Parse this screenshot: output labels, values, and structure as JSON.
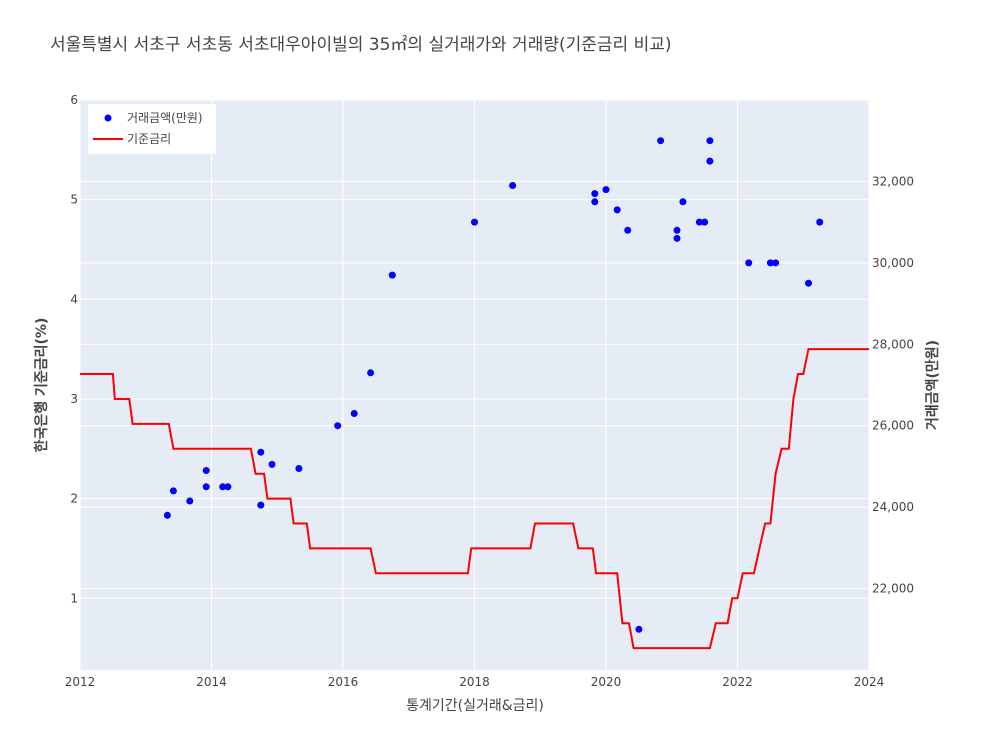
{
  "chart_data": {
    "type": "scatter+line",
    "title": "서울특별시 서초구 서초동 서초대우아이빌의 35㎡의 실거래가와 거래량(기준금리 비교)",
    "xlabel": "통계기간(실거래&금리)",
    "ylabel_left": "한국은행 기준금리(%)",
    "ylabel_right": "거래금액(만원)",
    "xlim": [
      2012,
      2024
    ],
    "ylim_left": [
      0.28,
      6.0
    ],
    "ylim_right": [
      20000,
      34000
    ],
    "x_ticks": [
      "2012",
      "2014",
      "2016",
      "2018",
      "2020",
      "2022",
      "2024"
    ],
    "y_left_ticks": [
      "1",
      "2",
      "3",
      "4",
      "5",
      "6"
    ],
    "y_right_ticks": [
      "22,000",
      "24,000",
      "26,000",
      "28,000",
      "30,000",
      "32,000"
    ],
    "legend_position": "top-left",
    "series": [
      {
        "name": "거래금액(만원)",
        "kind": "scatter",
        "axis": "right",
        "color": "#0000ff",
        "points": [
          [
            2013.33,
            23800
          ],
          [
            2013.42,
            24400
          ],
          [
            2013.67,
            24150
          ],
          [
            2013.92,
            24500
          ],
          [
            2013.92,
            24900
          ],
          [
            2014.17,
            24500
          ],
          [
            2014.25,
            24500
          ],
          [
            2014.75,
            24050
          ],
          [
            2014.75,
            25350
          ],
          [
            2014.92,
            25050
          ],
          [
            2015.33,
            24950
          ],
          [
            2015.92,
            26000
          ],
          [
            2016.17,
            26300
          ],
          [
            2016.42,
            27300
          ],
          [
            2016.75,
            29700
          ],
          [
            2018.0,
            31000
          ],
          [
            2018.58,
            31900
          ],
          [
            2019.83,
            31500
          ],
          [
            2019.83,
            31700
          ],
          [
            2020.0,
            31800
          ],
          [
            2020.17,
            31300
          ],
          [
            2020.33,
            30800
          ],
          [
            2020.5,
            21000
          ],
          [
            2020.83,
            33000
          ],
          [
            2021.08,
            30800
          ],
          [
            2021.08,
            30600
          ],
          [
            2021.17,
            31500
          ],
          [
            2021.42,
            31000
          ],
          [
            2021.5,
            31000
          ],
          [
            2021.58,
            32500
          ],
          [
            2021.58,
            33000
          ],
          [
            2022.17,
            30000
          ],
          [
            2022.5,
            30000
          ],
          [
            2022.58,
            30000
          ],
          [
            2023.08,
            29500
          ],
          [
            2023.25,
            31000
          ]
        ]
      },
      {
        "name": "기준금리",
        "kind": "line",
        "axis": "left",
        "color": "#ff0000",
        "points": [
          [
            2012.0,
            3.25
          ],
          [
            2012.5,
            3.25
          ],
          [
            2012.53,
            3.0
          ],
          [
            2012.75,
            3.0
          ],
          [
            2012.8,
            2.75
          ],
          [
            2013.35,
            2.75
          ],
          [
            2013.42,
            2.5
          ],
          [
            2014.6,
            2.5
          ],
          [
            2014.67,
            2.25
          ],
          [
            2014.8,
            2.25
          ],
          [
            2014.85,
            2.0
          ],
          [
            2015.2,
            2.0
          ],
          [
            2015.25,
            1.75
          ],
          [
            2015.45,
            1.75
          ],
          [
            2015.5,
            1.5
          ],
          [
            2016.42,
            1.5
          ],
          [
            2016.5,
            1.25
          ],
          [
            2017.9,
            1.25
          ],
          [
            2017.95,
            1.5
          ],
          [
            2018.85,
            1.5
          ],
          [
            2018.92,
            1.75
          ],
          [
            2019.5,
            1.75
          ],
          [
            2019.58,
            1.5
          ],
          [
            2019.8,
            1.5
          ],
          [
            2019.85,
            1.25
          ],
          [
            2020.17,
            1.25
          ],
          [
            2020.25,
            0.75
          ],
          [
            2020.35,
            0.75
          ],
          [
            2020.42,
            0.5
          ],
          [
            2021.58,
            0.5
          ],
          [
            2021.67,
            0.75
          ],
          [
            2021.85,
            0.75
          ],
          [
            2021.92,
            1.0
          ],
          [
            2022.0,
            1.0
          ],
          [
            2022.08,
            1.25
          ],
          [
            2022.25,
            1.25
          ],
          [
            2022.42,
            1.75
          ],
          [
            2022.5,
            1.75
          ],
          [
            2022.58,
            2.25
          ],
          [
            2022.67,
            2.5
          ],
          [
            2022.78,
            2.5
          ],
          [
            2022.85,
            3.0
          ],
          [
            2022.92,
            3.25
          ],
          [
            2023.0,
            3.25
          ],
          [
            2023.08,
            3.5
          ],
          [
            2024.0,
            3.5
          ]
        ]
      }
    ]
  }
}
